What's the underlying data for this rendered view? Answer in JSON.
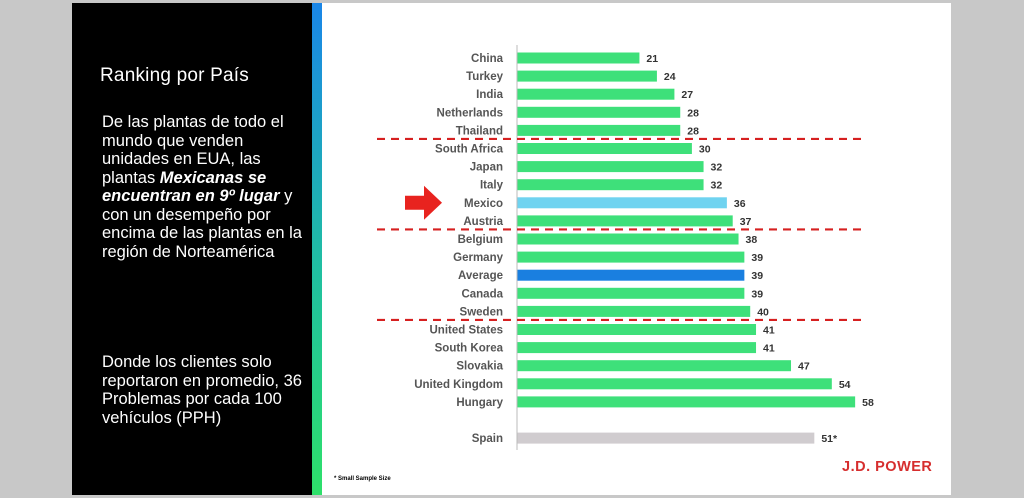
{
  "panel": {
    "title": "Ranking por País",
    "body_part1": "De las plantas de todo el mundo que venden unidades en EUA, las plantas ",
    "body_emph": "Mexicanas se encuentran en 9º lugar",
    "body_part2": " y con un desempeño por encima de las plantas en la región de Norteamérica",
    "body2": "Donde los clientes solo reportaron en promedio,  36 Problemas por cada 100 vehículos  (PPH)"
  },
  "footnote": "* Small Sample Size",
  "brand": "J.D. POWER",
  "colors": {
    "default_bar": "#3ee07a",
    "highlight_bar": "#6fd3f0",
    "average_bar": "#1a7fe0",
    "small_sample_bar": "#d0cccf",
    "divider": "#d62020",
    "arrow": "#e8231f"
  },
  "chart_data": {
    "type": "bar",
    "orientation": "horizontal",
    "categories": [
      "China",
      "Turkey",
      "India",
      "Netherlands",
      "Thailand",
      "South Africa",
      "Japan",
      "Italy",
      "Mexico",
      "Austria",
      "Belgium",
      "Germany",
      "Average",
      "Canada",
      "Sweden",
      "United States",
      "South Korea",
      "Slovakia",
      "United Kingdom",
      "Hungary",
      "Spain"
    ],
    "values": [
      21,
      24,
      27,
      28,
      28,
      30,
      32,
      32,
      36,
      37,
      38,
      39,
      39,
      39,
      40,
      41,
      41,
      47,
      54,
      58,
      51
    ],
    "value_labels": [
      "21",
      "24",
      "27",
      "28",
      "28",
      "30",
      "32",
      "32",
      "36",
      "37",
      "38",
      "39",
      "39",
      "39",
      "40",
      "41",
      "41",
      "47",
      "54",
      "58",
      "51*"
    ],
    "bar_kind": [
      "default",
      "default",
      "default",
      "default",
      "default",
      "default",
      "default",
      "default",
      "highlight",
      "default",
      "default",
      "default",
      "average",
      "default",
      "default",
      "default",
      "default",
      "default",
      "default",
      "default",
      "small_sample"
    ],
    "dividers_after": [
      "Thailand",
      "Austria",
      "Sweden"
    ],
    "highlighted_category": "Mexico",
    "xlim": [
      0,
      58
    ]
  }
}
